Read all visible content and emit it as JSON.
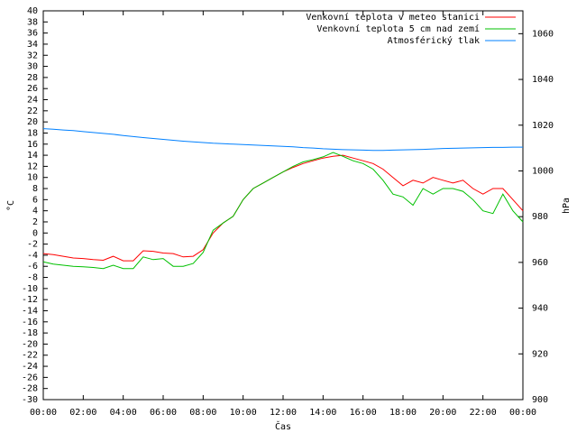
{
  "chart_data": {
    "type": "line",
    "xlabel": "Čas",
    "ylabel": "°C",
    "y2label": "hPa",
    "x": [
      0,
      0.5,
      1,
      1.5,
      2,
      2.5,
      3,
      3.5,
      4,
      4.5,
      5,
      5.5,
      6,
      6.5,
      7,
      7.5,
      8,
      8.5,
      9,
      9.5,
      10,
      10.5,
      11,
      11.5,
      12,
      12.5,
      13,
      13.5,
      14,
      14.5,
      15,
      15.5,
      16,
      16.5,
      17,
      17.5,
      18,
      18.5,
      19,
      19.5,
      20,
      20.5,
      21,
      21.5,
      22,
      22.5,
      23,
      23.5,
      24
    ],
    "series": [
      {
        "name": "Venkovní teplota v meteo stanici",
        "color": "#ff0000",
        "values": [
          -3.7,
          -3.9,
          -4.2,
          -4.5,
          -4.6,
          -4.8,
          -4.9,
          -4.2,
          -5,
          -5,
          -3.2,
          -3.3,
          -3.6,
          -3.7,
          -4.3,
          -4.2,
          -3,
          0,
          1.8,
          3,
          6,
          8,
          9,
          10,
          11,
          11.8,
          12.5,
          13,
          13.5,
          13.8,
          14,
          13.5,
          13,
          12.5,
          11.5,
          10,
          8.5,
          9.5,
          9,
          10,
          9.5,
          9,
          9.5,
          8,
          7,
          8,
          8,
          6,
          4
        ]
      },
      {
        "name": "Venkovní teplota 5 cm nad zemí",
        "color": "#00c000",
        "values": [
          -5.2,
          -5.6,
          -5.8,
          -6,
          -6.1,
          -6.2,
          -6.4,
          -5.8,
          -6.4,
          -6.4,
          -4.3,
          -4.8,
          -4.6,
          -6,
          -6,
          -5.5,
          -3.5,
          0.5,
          1.8,
          3,
          6,
          8,
          9,
          10,
          11,
          12,
          12.8,
          13.2,
          13.7,
          14.5,
          13.8,
          13,
          12.5,
          11.5,
          9.5,
          7,
          6.5,
          5,
          8,
          7,
          8,
          8,
          7.5,
          6,
          4,
          3.5,
          7,
          4,
          2
        ]
      },
      {
        "name": "Atmosférický tlak",
        "color": "#0080ff",
        "axis": "y2",
        "values": [
          1018.5,
          1018.2,
          1017.9,
          1017.6,
          1017.2,
          1016.8,
          1016.4,
          1016,
          1015.5,
          1015,
          1014.6,
          1014.2,
          1013.8,
          1013.4,
          1013,
          1012.7,
          1012.4,
          1012.1,
          1011.9,
          1011.7,
          1011.5,
          1011.3,
          1011.1,
          1010.9,
          1010.7,
          1010.5,
          1010.2,
          1010,
          1009.7,
          1009.5,
          1009.3,
          1009.2,
          1009.1,
          1009,
          1009,
          1009.1,
          1009.2,
          1009.3,
          1009.4,
          1009.6,
          1009.8,
          1009.9,
          1010,
          1010.1,
          1010.2,
          1010.3,
          1010.3,
          1010.4,
          1010.4
        ]
      }
    ],
    "xlim": [
      0,
      24
    ],
    "xticks": [
      {
        "value": 0,
        "label": "00:00"
      },
      {
        "value": 2,
        "label": "02:00"
      },
      {
        "value": 4,
        "label": "04:00"
      },
      {
        "value": 6,
        "label": "06:00"
      },
      {
        "value": 8,
        "label": "08:00"
      },
      {
        "value": 10,
        "label": "10:00"
      },
      {
        "value": 12,
        "label": "12:00"
      },
      {
        "value": 14,
        "label": "14:00"
      },
      {
        "value": 16,
        "label": "16:00"
      },
      {
        "value": 18,
        "label": "18:00"
      },
      {
        "value": 20,
        "label": "20:00"
      },
      {
        "value": 22,
        "label": "22:00"
      },
      {
        "value": 24,
        "label": "00:00"
      }
    ],
    "ylim": [
      -30,
      40
    ],
    "yticks": [
      -30,
      -28,
      -26,
      -24,
      -22,
      -20,
      -18,
      -16,
      -14,
      -12,
      -10,
      -8,
      -6,
      -4,
      -2,
      0,
      2,
      4,
      6,
      8,
      10,
      12,
      14,
      16,
      18,
      20,
      22,
      24,
      26,
      28,
      30,
      32,
      34,
      36,
      38,
      40
    ],
    "y2lim": [
      900,
      1070
    ],
    "y2ticks": [
      900,
      920,
      940,
      960,
      980,
      1000,
      1020,
      1040,
      1060
    ],
    "legend": "upper right"
  }
}
